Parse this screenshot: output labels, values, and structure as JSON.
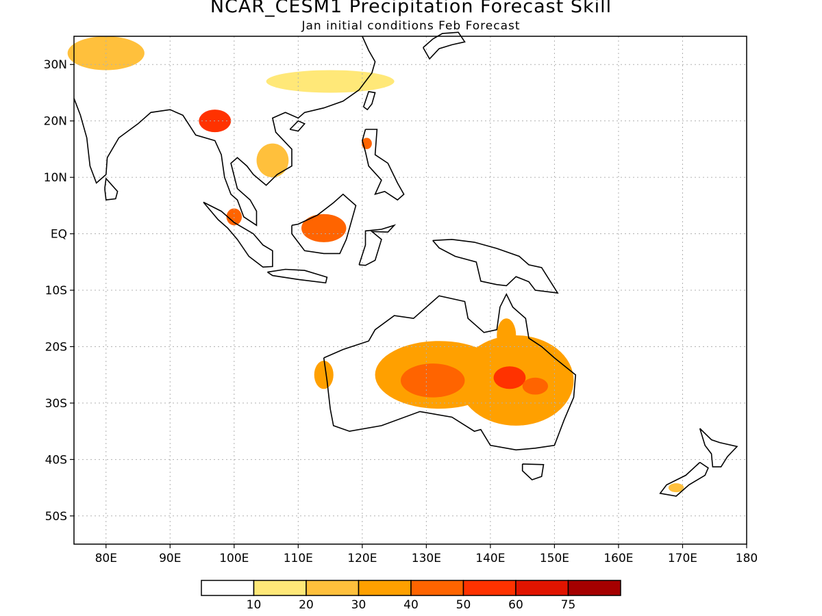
{
  "header": {
    "title": "NCAR_CESM1  Precipitation  Forecast  Skill",
    "subtitle": "Jan initial conditions  Feb Forecast"
  },
  "map": {
    "lon_range": [
      75,
      180
    ],
    "lat_range": [
      -55,
      35
    ],
    "land_color": "#ffffff",
    "coast_color": "#000000",
    "grid": "dotted",
    "lat_ticks": [
      {
        "value": 30,
        "label": "30N"
      },
      {
        "value": 20,
        "label": "20N"
      },
      {
        "value": 10,
        "label": "10N"
      },
      {
        "value": 0,
        "label": "EQ"
      },
      {
        "value": -10,
        "label": "10S"
      },
      {
        "value": -20,
        "label": "20S"
      },
      {
        "value": -30,
        "label": "30S"
      },
      {
        "value": -40,
        "label": "40S"
      },
      {
        "value": -50,
        "label": "50S"
      }
    ],
    "lon_ticks": [
      {
        "value": 80,
        "label": "80E"
      },
      {
        "value": 90,
        "label": "90E"
      },
      {
        "value": 100,
        "label": "100E"
      },
      {
        "value": 110,
        "label": "110E"
      },
      {
        "value": 120,
        "label": "120E"
      },
      {
        "value": 130,
        "label": "130E"
      },
      {
        "value": 140,
        "label": "140E"
      },
      {
        "value": 150,
        "label": "150E"
      },
      {
        "value": 160,
        "label": "160E"
      },
      {
        "value": 170,
        "label": "170E"
      },
      {
        "value": 180,
        "label": "180"
      }
    ]
  },
  "colorbar": {
    "colors": [
      "#ffffff",
      "#ffe878",
      "#ffc03c",
      "#ffa000",
      "#ff6400",
      "#ff3200",
      "#e11400",
      "#a50000"
    ],
    "labels": [
      "10",
      "20",
      "30",
      "40",
      "50",
      "60",
      "75"
    ]
  },
  "skill_regions": [
    {
      "lon": 132,
      "lat": -25,
      "rx": 10,
      "ry": 6,
      "level": 3
    },
    {
      "lon": 144,
      "lat": -26,
      "rx": 9,
      "ry": 8,
      "level": 3
    },
    {
      "lon": 131,
      "lat": -26,
      "rx": 5,
      "ry": 3,
      "level": 4
    },
    {
      "lon": 143,
      "lat": -25.5,
      "rx": 2.5,
      "ry": 2,
      "level": 5
    },
    {
      "lon": 147,
      "lat": -27,
      "rx": 2,
      "ry": 1.5,
      "level": 4
    },
    {
      "lon": 142.5,
      "lat": -18,
      "rx": 1.5,
      "ry": 3,
      "level": 3
    },
    {
      "lon": 114,
      "lat": -25,
      "rx": 1.5,
      "ry": 2.5,
      "level": 3
    },
    {
      "lon": 114,
      "lat": 1,
      "rx": 3.5,
      "ry": 2.5,
      "level": 4
    },
    {
      "lon": 97,
      "lat": 20,
      "rx": 2.5,
      "ry": 2,
      "level": 5
    },
    {
      "lon": 106,
      "lat": 13,
      "rx": 2.5,
      "ry": 3,
      "level": 2
    },
    {
      "lon": 115,
      "lat": 27,
      "rx": 10,
      "ry": 2,
      "level": 1
    },
    {
      "lon": 80,
      "lat": 32,
      "rx": 6,
      "ry": 3,
      "level": 2
    },
    {
      "lon": 100,
      "lat": 3,
      "rx": 1.2,
      "ry": 1.5,
      "level": 4
    },
    {
      "lon": 120.7,
      "lat": 16,
      "rx": 0.8,
      "ry": 1,
      "level": 4
    },
    {
      "lon": 169,
      "lat": -45,
      "rx": 1.2,
      "ry": 0.8,
      "level": 2
    }
  ]
}
